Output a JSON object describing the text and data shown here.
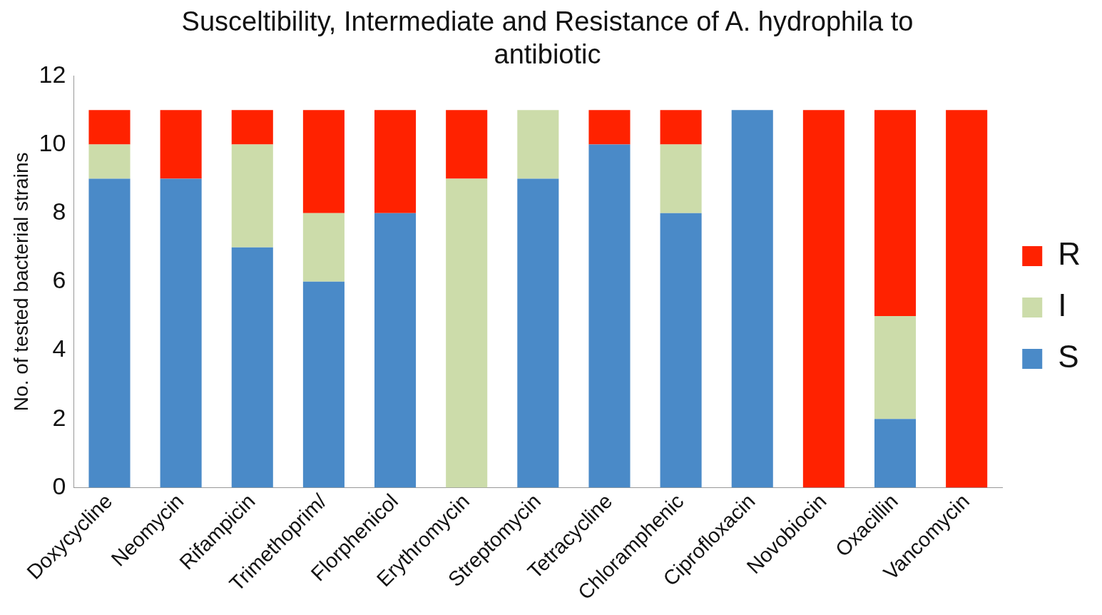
{
  "chart_data": {
    "type": "bar",
    "title": "Susceltibility, Intermediate and Resistance of A. hydrophila to antibiotic",
    "ylabel": "No. of tested bacterial strains",
    "categories": [
      "Doxycycline",
      "Neomycin",
      "Rifampicin",
      "Trimethoprim/",
      "Florphenicol",
      "Erythromycin",
      "Streptomycin",
      "Tetracycline",
      "Chloramphenic",
      "Ciprofloxacin",
      "Novobiocin",
      "Oxacillin",
      "Vancomycin"
    ],
    "series": [
      {
        "name": "S",
        "color": "#4a8ac8",
        "values": [
          9,
          9,
          7,
          6,
          8,
          0,
          9,
          10,
          8,
          11,
          0,
          2,
          0
        ]
      },
      {
        "name": "I",
        "color": "#ccdcaa",
        "values": [
          1,
          0,
          3,
          2,
          0,
          9,
          2,
          0,
          2,
          0,
          0,
          3,
          0
        ]
      },
      {
        "name": "R",
        "color": "#ff2200",
        "values": [
          1,
          2,
          1,
          3,
          3,
          2,
          0,
          1,
          1,
          0,
          11,
          6,
          11
        ]
      }
    ],
    "stacked": true,
    "ylim": [
      0,
      12
    ],
    "yticks": [
      0,
      2,
      4,
      6,
      8,
      10,
      12
    ],
    "grid": false,
    "legend": "right"
  }
}
